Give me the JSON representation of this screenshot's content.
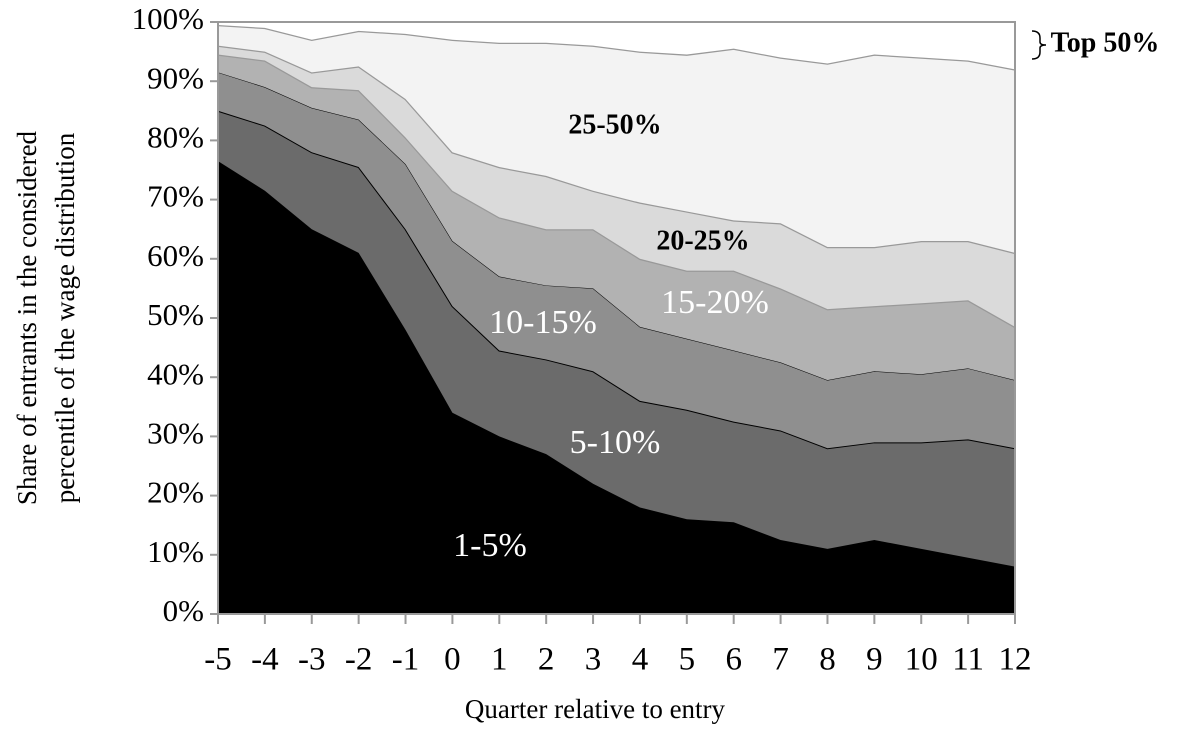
{
  "chart_data": {
    "type": "stacked_area",
    "x_label": "Quarter relative to entry",
    "y_label": [
      "Share of entrants in the considered",
      "percentile of the wage distribution"
    ],
    "x": [
      -5,
      -4,
      -3,
      -2,
      -1,
      0,
      1,
      2,
      3,
      4,
      5,
      6,
      7,
      8,
      9,
      10,
      11,
      12
    ],
    "xlim": [
      -5,
      12
    ],
    "xticks": [
      -5,
      -4,
      -3,
      -2,
      -1,
      0,
      1,
      2,
      3,
      4,
      5,
      6,
      7,
      8,
      9,
      10,
      11,
      12
    ],
    "ylim": [
      0,
      100
    ],
    "yticks": [
      {
        "value": 0,
        "label": "0%"
      },
      {
        "value": 10,
        "label": "10%"
      },
      {
        "value": 20,
        "label": "20%"
      },
      {
        "value": 30,
        "label": "30%"
      },
      {
        "value": 40,
        "label": "40%"
      },
      {
        "value": 50,
        "label": "50%"
      },
      {
        "value": 60,
        "label": "60%"
      },
      {
        "value": 70,
        "label": "70%"
      },
      {
        "value": 80,
        "label": "80%"
      },
      {
        "value": 90,
        "label": "90%"
      },
      {
        "value": 100,
        "label": "100%"
      }
    ],
    "series": [
      {
        "name": "1-5%",
        "color": "#000000",
        "values": [
          76.5,
          71.5,
          65,
          61,
          48,
          34,
          30,
          27,
          22,
          18,
          16,
          15.5,
          12.5,
          11,
          12.5,
          11,
          9.5,
          8
        ]
      },
      {
        "name": "5-10%",
        "color": "#6b6b6b",
        "values": [
          8.5,
          11,
          13,
          14.5,
          17,
          18,
          14.5,
          16,
          19,
          18,
          18.5,
          17,
          18.5,
          17,
          16.5,
          18,
          20,
          20
        ]
      },
      {
        "name": "10-15%",
        "color": "#8f8f8f",
        "values": [
          6.5,
          6.5,
          7.5,
          8,
          11,
          11,
          12.5,
          12.5,
          14,
          12.5,
          12,
          12,
          11.5,
          11.5,
          12,
          11.5,
          12,
          11.5
        ]
      },
      {
        "name": "15-20%",
        "color": "#b2b2b2",
        "values": [
          3,
          4.5,
          3.5,
          5,
          4.5,
          8.5,
          10,
          9.5,
          10,
          11.5,
          11.5,
          13.5,
          12.5,
          12,
          11,
          12,
          11.5,
          9
        ]
      },
      {
        "name": "20-25%",
        "color": "#dadada",
        "values": [
          1.5,
          1.5,
          2.5,
          4,
          6.5,
          6.5,
          8.5,
          9,
          6.5,
          9.5,
          10,
          8.5,
          11,
          10.5,
          10,
          10.5,
          10,
          12.5
        ]
      },
      {
        "name": "25-50%",
        "color": "#f3f3f3",
        "values": [
          3.5,
          4,
          5.5,
          6,
          11,
          19,
          21,
          22.5,
          24.5,
          25.5,
          26.5,
          29,
          28,
          31,
          32.5,
          31,
          30.5,
          31
        ]
      },
      {
        "name": "Top 50%",
        "color": "#ffffff",
        "values": [
          0.5,
          1,
          3,
          1.5,
          2,
          3,
          3.5,
          3.5,
          4,
          5,
          5.5,
          4.5,
          6,
          7,
          5.5,
          6,
          6.5,
          8
        ]
      }
    ]
  }
}
